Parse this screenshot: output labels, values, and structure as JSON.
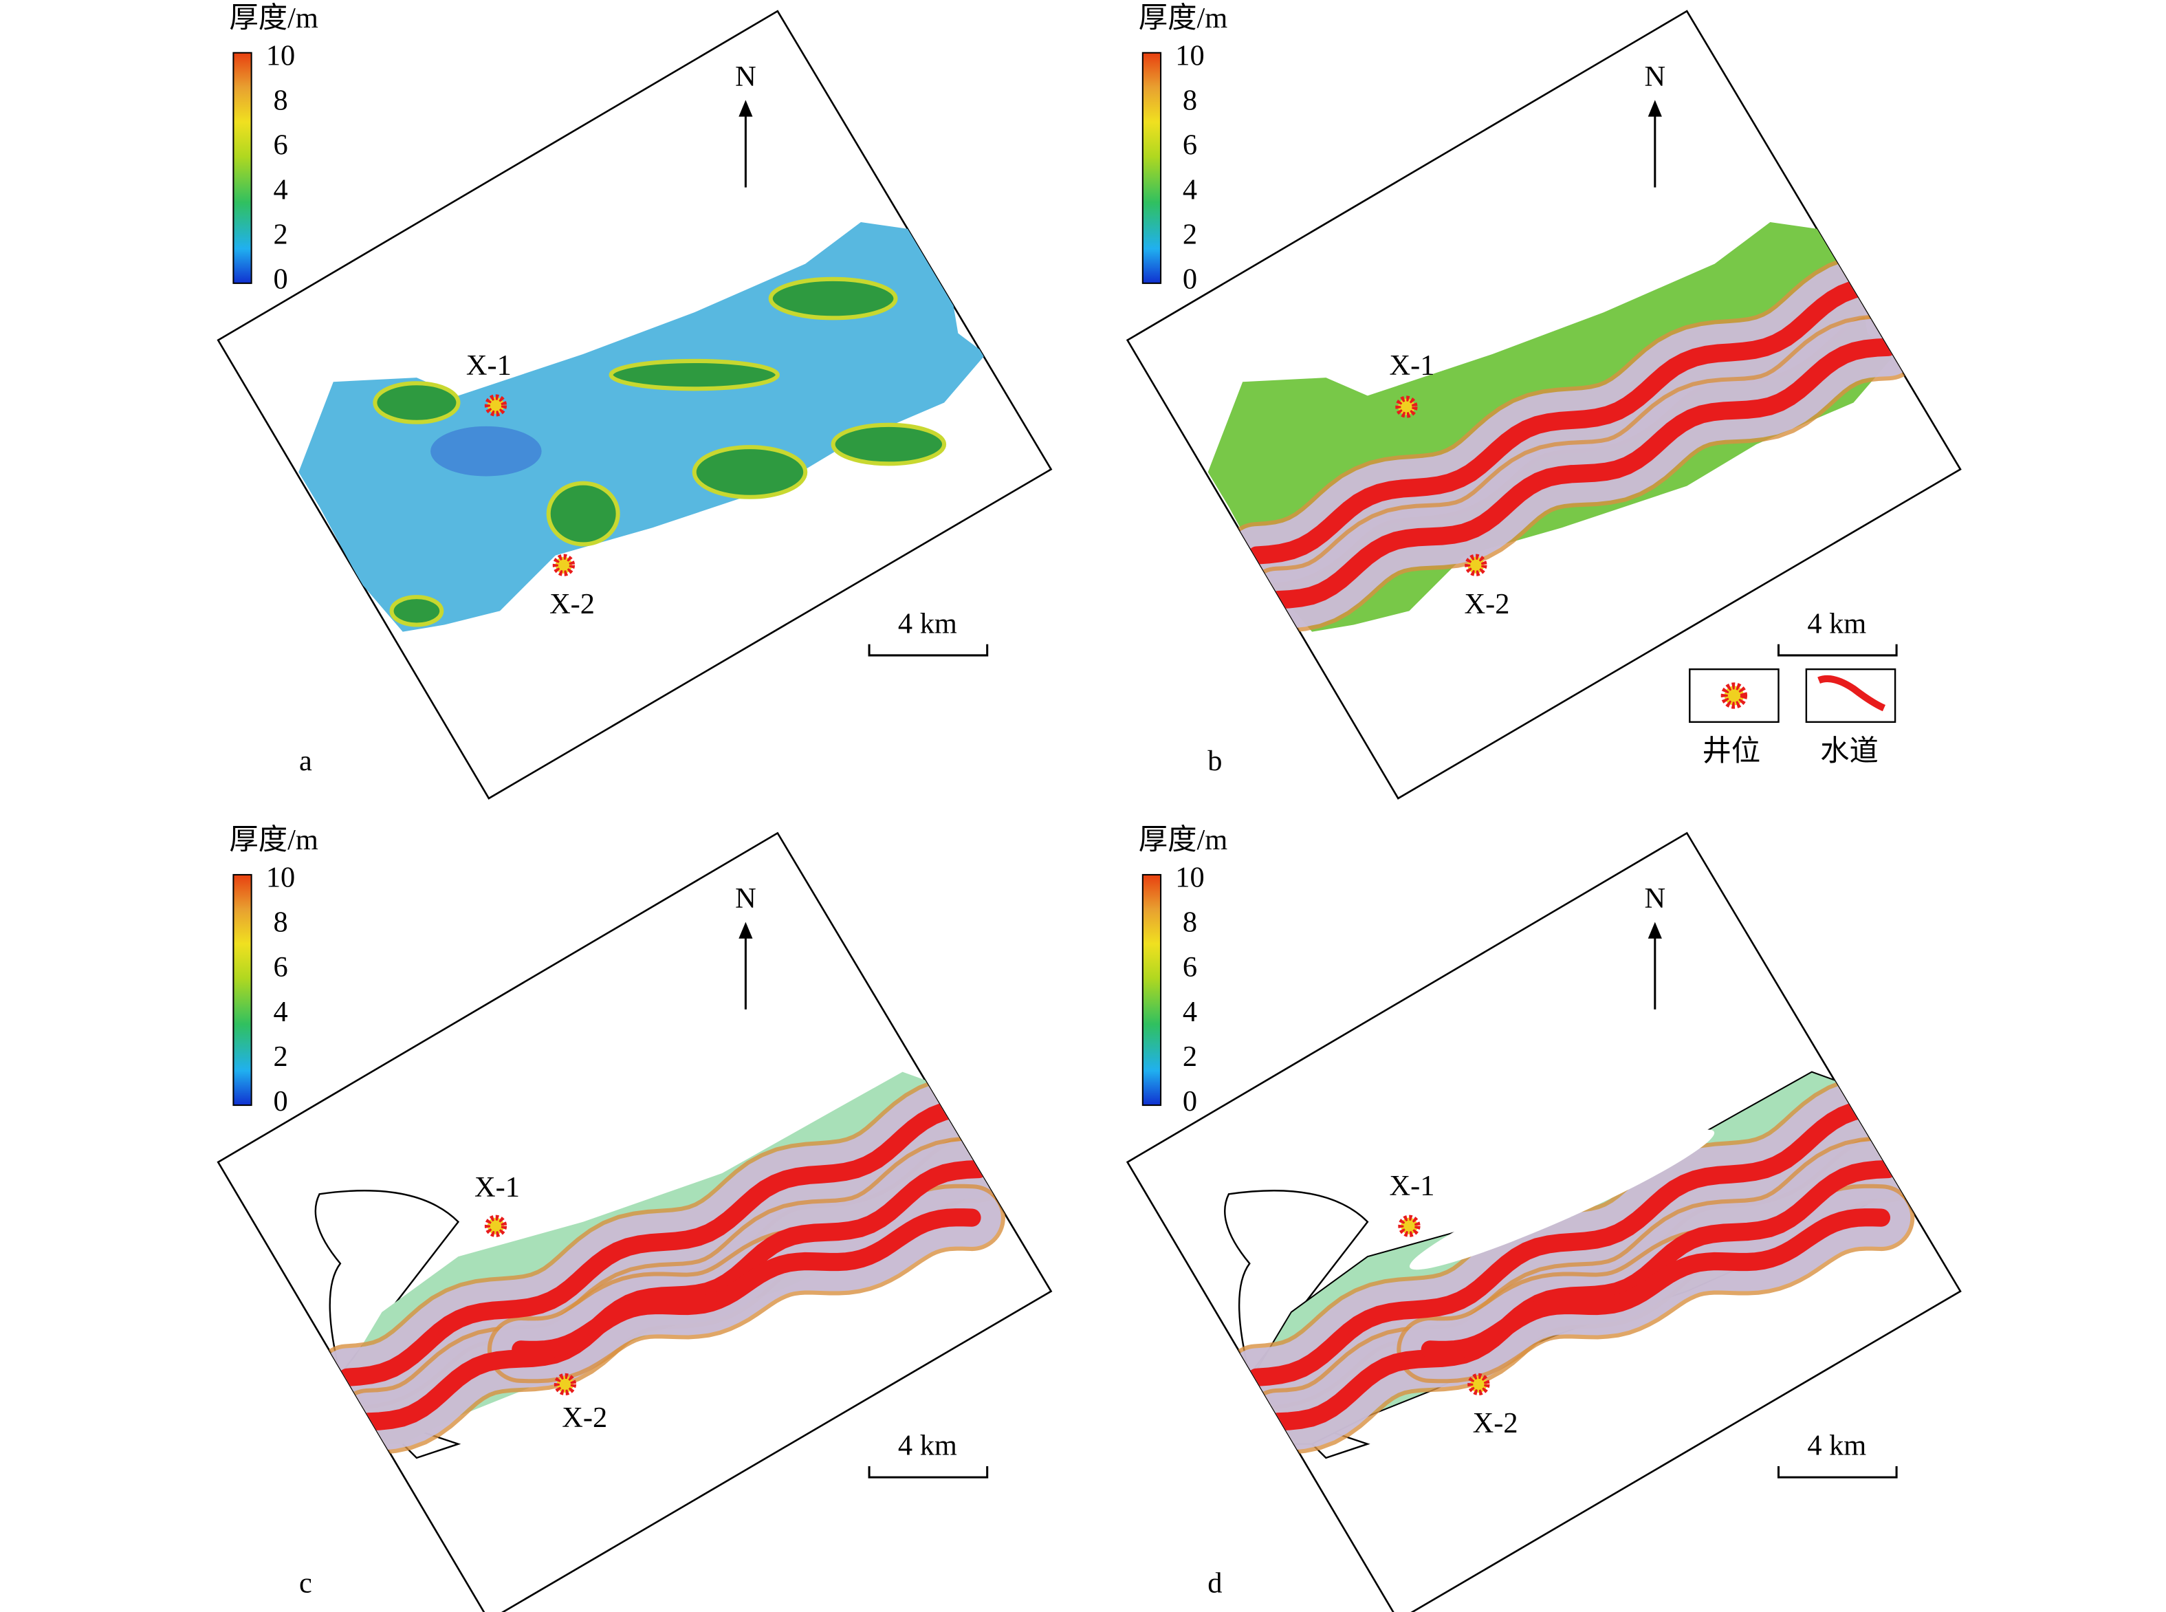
{
  "panels": [
    {
      "label": "a",
      "colorbar": {
        "title": "厚度/m",
        "ticks": [
          10,
          8,
          6,
          4,
          2,
          0
        ]
      },
      "north": "N",
      "scale": "4 km",
      "wells": [
        "X-1",
        "X-2"
      ]
    },
    {
      "label": "b",
      "colorbar": {
        "title": "厚度/m",
        "ticks": [
          10,
          8,
          6,
          4,
          2,
          0
        ]
      },
      "north": "N",
      "scale": "4 km",
      "wells": [
        "X-1",
        "X-2"
      ]
    },
    {
      "label": "c",
      "colorbar": {
        "title": "厚度/m",
        "ticks": [
          10,
          8,
          6,
          4,
          2,
          0
        ]
      },
      "north": "N",
      "scale": "4 km",
      "wells": [
        "X-1",
        "X-2"
      ]
    },
    {
      "label": "d",
      "colorbar": {
        "title": "厚度/m",
        "ticks": [
          10,
          8,
          6,
          4,
          2,
          0
        ]
      },
      "north": "N",
      "scale": "4 km",
      "wells": [
        "X-1",
        "X-2"
      ]
    }
  ],
  "legend": {
    "well": "井位",
    "channel": "水道"
  }
}
